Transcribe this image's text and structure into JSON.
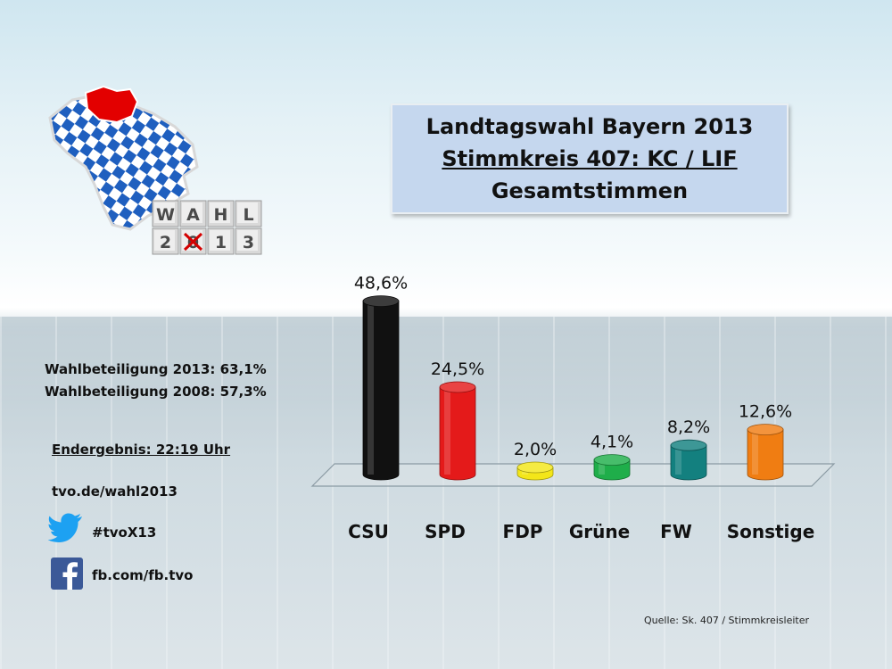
{
  "title": {
    "line1": "Landtagswahl Bayern 2013",
    "line2": "Stimmkreis 407: KC / LIF",
    "line3": "Gesamtstimmen"
  },
  "logo": {
    "row1": [
      "W",
      "A",
      "H",
      "L"
    ],
    "row2": [
      "2",
      "0",
      "1",
      "3"
    ]
  },
  "info": {
    "turnout_2013": "Wahlbeteiligung 2013: 63,1%",
    "turnout_2008": "Wahlbeteiligung 2008: 57,3%",
    "final_result": "Endergebnis: 22:19 Uhr",
    "website": "tvo.de/wahl2013",
    "twitter": "#tvoX13",
    "facebook": "fb.com/fb.tvo"
  },
  "source": "Quelle: Sk. 407 / Stimmkreisleiter",
  "chart_data": {
    "type": "bar",
    "categories": [
      "CSU",
      "SPD",
      "FDP",
      "Grüne",
      "FW",
      "Sonstige"
    ],
    "values": [
      48.6,
      24.5,
      2.0,
      4.1,
      8.2,
      12.6
    ],
    "value_labels": [
      "48,6%",
      "24,5%",
      "2,0%",
      "4,1%",
      "8,2%",
      "12,6%"
    ],
    "colors": [
      "#111111",
      "#e41a1a",
      "#f3e619",
      "#1fae4a",
      "#13807f",
      "#f07d12"
    ],
    "ylim": [
      0,
      50
    ],
    "grid": false,
    "legend": "none"
  }
}
